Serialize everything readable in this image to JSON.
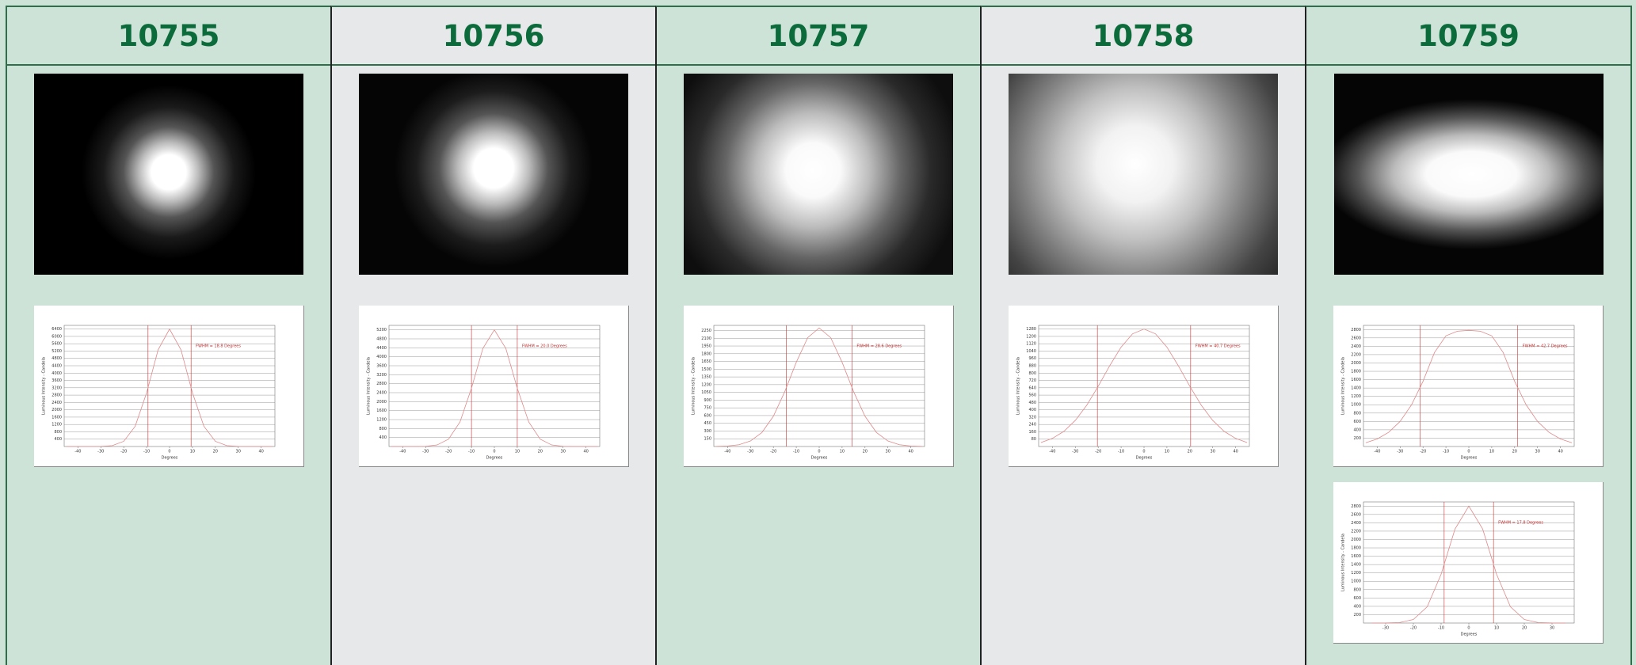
{
  "columns": [
    {
      "id": "10755",
      "charts": [
        {
          "fwhm": "FWHM = 18.8 Degrees",
          "xlabel": "Degrees",
          "ylabel": "Luminous Intensity - Candela",
          "xlim": [
            -46,
            46
          ],
          "xticks": [
            -40,
            -30,
            -20,
            -10,
            0,
            10,
            20,
            30,
            40
          ],
          "ylim": [
            0,
            6600
          ],
          "yticks": [
            400,
            800,
            1200,
            1600,
            2000,
            2400,
            2800,
            3200,
            3600,
            4000,
            4400,
            4800,
            5200,
            5600,
            6000,
            6400
          ],
          "fwhm_lines": [
            -9.4,
            9.4
          ],
          "x": [
            -45,
            -40,
            -35,
            -30,
            -25,
            -20,
            -15,
            -10,
            -5,
            0,
            5,
            10,
            15,
            20,
            25,
            30,
            35,
            40,
            45
          ],
          "values": [
            0,
            0,
            0,
            6,
            48,
            282,
            1103,
            2930,
            5265,
            6400,
            5265,
            2930,
            1103,
            282,
            48,
            6,
            0,
            0,
            0
          ]
        }
      ]
    },
    {
      "id": "10756",
      "charts": [
        {
          "fwhm": "FWHM = 20.0 Degrees",
          "xlabel": "Degrees",
          "ylabel": "Luminous Intensity - Candela",
          "xlim": [
            -46,
            46
          ],
          "xticks": [
            -40,
            -30,
            -20,
            -10,
            0,
            10,
            20,
            30,
            40
          ],
          "ylim": [
            0,
            5400
          ],
          "yticks": [
            400,
            800,
            1200,
            1600,
            2000,
            2400,
            2800,
            3200,
            3600,
            4000,
            4400,
            4800,
            5200
          ],
          "fwhm_lines": [
            -10,
            10
          ],
          "x": [
            -45,
            -40,
            -35,
            -30,
            -25,
            -20,
            -15,
            -10,
            -5,
            0,
            5,
            10,
            15,
            20,
            25,
            30,
            35,
            40,
            45
          ],
          "values": [
            0,
            0,
            1,
            10,
            69,
            327,
            1096,
            2600,
            4374,
            5200,
            4374,
            2600,
            1096,
            327,
            69,
            10,
            1,
            0,
            0
          ]
        }
      ]
    },
    {
      "id": "10757",
      "charts": [
        {
          "fwhm": "FWHM = 28.6 Degrees",
          "xlabel": "Degrees",
          "ylabel": "Luminous Intensity - Candela",
          "xlim": [
            -46,
            46
          ],
          "xticks": [
            -40,
            -30,
            -20,
            -10,
            0,
            10,
            20,
            30,
            40
          ],
          "ylim": [
            0,
            2350
          ],
          "yticks": [
            150,
            300,
            450,
            600,
            750,
            900,
            1050,
            1200,
            1350,
            1500,
            1650,
            1800,
            1950,
            2100,
            2250
          ],
          "fwhm_lines": [
            -14.3,
            14.3
          ],
          "x": [
            -45,
            -40,
            -35,
            -30,
            -25,
            -20,
            -15,
            -10,
            -5,
            0,
            5,
            10,
            15,
            20,
            25,
            30,
            35,
            40,
            45
          ],
          "values": [
            2,
            10,
            35,
            107,
            272,
            587,
            1067,
            1635,
            2112,
            2300,
            2112,
            1635,
            1067,
            587,
            272,
            107,
            35,
            10,
            2
          ]
        }
      ]
    },
    {
      "id": "10758",
      "charts": [
        {
          "fwhm": "FWHM = 40.7 Degrees",
          "xlabel": "Degrees",
          "ylabel": "Luminous Intensity - Candela",
          "xlim": [
            -46,
            46
          ],
          "xticks": [
            -40,
            -30,
            -20,
            -10,
            0,
            10,
            20,
            30,
            40
          ],
          "ylim": [
            0,
            1320
          ],
          "yticks": [
            80,
            160,
            240,
            320,
            400,
            480,
            560,
            640,
            720,
            800,
            880,
            960,
            1040,
            1120,
            1200,
            1280
          ],
          "fwhm_lines": [
            -20.35,
            20.35
          ],
          "x": [
            -45,
            -40,
            -35,
            -30,
            -25,
            -20,
            -15,
            -10,
            -5,
            0,
            5,
            10,
            15,
            20,
            25,
            30,
            35,
            40,
            45
          ],
          "values": [
            43,
            88,
            165,
            284,
            450,
            656,
            879,
            1083,
            1228,
            1280,
            1228,
            1083,
            879,
            656,
            450,
            284,
            165,
            88,
            43
          ]
        }
      ]
    },
    {
      "id": "10759",
      "charts": [
        {
          "fwhm": "FWHM = 42.7 Degrees",
          "xlabel": "Degrees",
          "ylabel": "Luminous Intensity - Candela",
          "xlim": [
            -46,
            46
          ],
          "xticks": [
            -40,
            -30,
            -20,
            -10,
            0,
            10,
            20,
            30,
            40
          ],
          "ylim": [
            0,
            2900
          ],
          "yticks": [
            200,
            400,
            600,
            800,
            1000,
            1200,
            1400,
            1600,
            1800,
            2000,
            2200,
            2400,
            2600,
            2800
          ],
          "fwhm_lines": [
            -21.35,
            21.35
          ],
          "x": [
            -45,
            -40,
            -35,
            -30,
            -25,
            -20,
            -15,
            -10,
            -5,
            0,
            5,
            10,
            15,
            20,
            25,
            30,
            35,
            40,
            45
          ],
          "values": [
            90,
            180,
            340,
            600,
            1000,
            1560,
            2250,
            2650,
            2760,
            2780,
            2760,
            2650,
            2250,
            1560,
            1000,
            600,
            340,
            180,
            90
          ]
        },
        {
          "fwhm": "FWHM = 17.8 Degrees",
          "xlabel": "Degrees",
          "ylabel": "Luminous Intensity - Candela",
          "xlim": [
            -38,
            38
          ],
          "xticks": [
            -30,
            -20,
            -10,
            0,
            10,
            20,
            30
          ],
          "ylim": [
            0,
            2900
          ],
          "yticks": [
            200,
            400,
            600,
            800,
            1000,
            1200,
            1400,
            1600,
            1800,
            2000,
            2200,
            2400,
            2600,
            2800
          ],
          "fwhm_lines": [
            -8.9,
            8.9
          ],
          "x": [
            -35,
            -30,
            -25,
            -20,
            -15,
            -10,
            -5,
            0,
            5,
            10,
            15,
            20,
            25,
            30,
            35
          ],
          "values": [
            0,
            1,
            12,
            85,
            391,
            1168,
            2249,
            2800,
            2249,
            1168,
            391,
            85,
            12,
            1,
            0
          ]
        }
      ]
    }
  ]
}
